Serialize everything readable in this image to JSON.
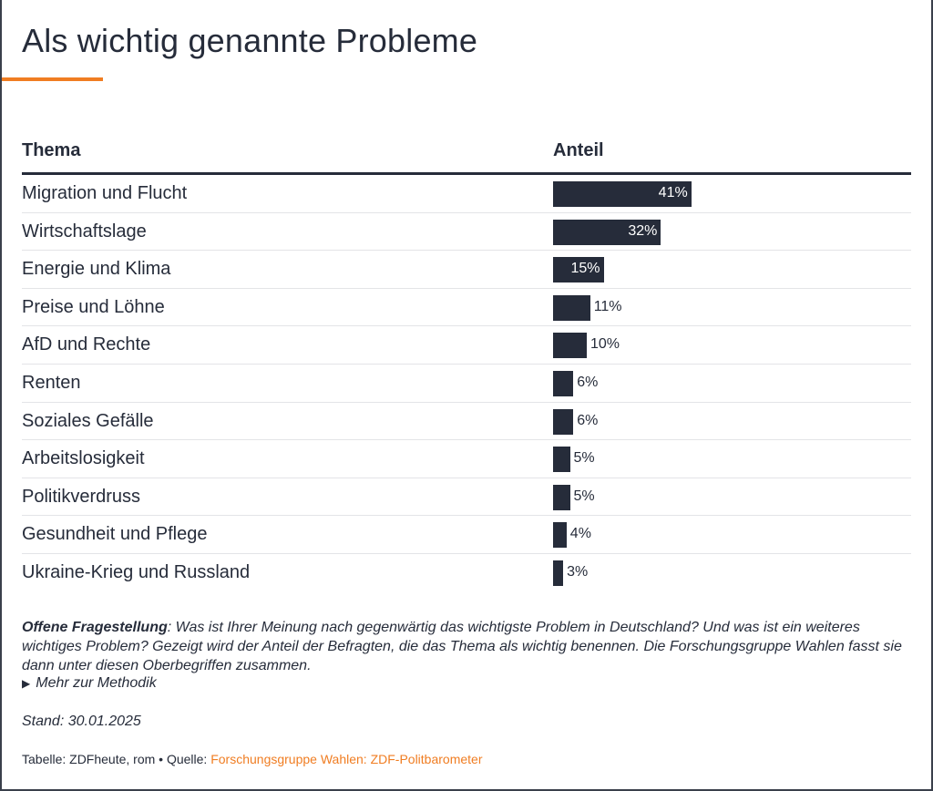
{
  "title": "Als wichtig genannte Probleme",
  "accent_color": "#f07d22",
  "bar_color": "#262c3a",
  "table": {
    "col_topic": "Thema",
    "col_share": "Anteil"
  },
  "chart_data": {
    "type": "bar",
    "orientation": "horizontal",
    "title": "Als wichtig genannte Probleme",
    "xlabel": "Anteil",
    "ylabel": "Thema",
    "unit": "%",
    "xlim": [
      0,
      100
    ],
    "categories": [
      "Migration und Flucht",
      "Wirtschaftslage",
      "Energie und Klima",
      "Preise und Löhne",
      "AfD und Rechte",
      "Renten",
      "Soziales Gefälle",
      "Arbeitslosigkeit",
      "Politikverdruss",
      "Gesundheit und Pflege",
      "Ukraine-Krieg und Russland"
    ],
    "values": [
      41,
      32,
      15,
      11,
      10,
      6,
      6,
      5,
      5,
      4,
      3
    ],
    "labels": [
      "41%",
      "32%",
      "15%",
      "11%",
      "10%",
      "6%",
      "6%",
      "5%",
      "5%",
      "4%",
      "3%"
    ]
  },
  "notes": {
    "lead": "Offene Fragestellung",
    "text": ": Was ist Ihrer Meinung nach gegenwärtig das wichtigste Problem in Deutschland? Und was ist ein weiteres wichtiges Problem? Gezeigt wird der Anteil der Befragten, die das Thema als wichtig benennen. Die Forschungsgruppe Wahlen fasst sie dann unter diesen Oberbegriffen zusammen.",
    "method_link": "Mehr zur Methodik",
    "method_icon": "triangle-right-icon"
  },
  "stand": "Stand: 30.01.2025",
  "source": {
    "prefix": "Tabelle: ZDFheute, rom • Quelle: ",
    "link": "Forschungsgruppe Wahlen: ZDF-Politbarometer"
  }
}
